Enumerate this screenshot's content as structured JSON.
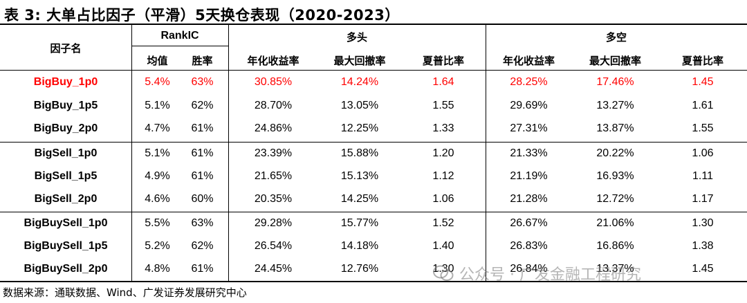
{
  "title": "表 3:  大单占比因子（平滑）5天换仓表现（2020-2023）",
  "header": {
    "factor_name": "因子名",
    "groups": {
      "rankic": "RankIC",
      "long": "多头",
      "long_short": "多空"
    },
    "columns": [
      "均值",
      "胜率",
      "年化收益率",
      "最大回撤率",
      "夏普比率",
      "年化收益率",
      "最大回撤率",
      "夏普比率"
    ]
  },
  "rows": [
    {
      "name": "BigBuy_1p0",
      "values": [
        "5.4%",
        "63%",
        "30.85%",
        "14.24%",
        "1.64",
        "28.25%",
        "17.46%",
        "1.45"
      ],
      "highlight": true
    },
    {
      "name": "BigBuy_1p5",
      "values": [
        "5.1%",
        "62%",
        "28.70%",
        "13.05%",
        "1.55",
        "29.69%",
        "13.27%",
        "1.61"
      ],
      "highlight": false
    },
    {
      "name": "BigBuy_2p0",
      "values": [
        "4.7%",
        "61%",
        "24.86%",
        "12.25%",
        "1.33",
        "27.31%",
        "13.87%",
        "1.55"
      ],
      "highlight": false
    },
    {
      "name": "BigSell_1p0",
      "values": [
        "5.1%",
        "61%",
        "23.39%",
        "15.88%",
        "1.20",
        "21.33%",
        "20.22%",
        "1.06"
      ],
      "highlight": false
    },
    {
      "name": "BigSell_1p5",
      "values": [
        "4.9%",
        "61%",
        "21.65%",
        "15.13%",
        "1.12",
        "21.19%",
        "16.93%",
        "1.11"
      ],
      "highlight": false
    },
    {
      "name": "BigSell_2p0",
      "values": [
        "4.6%",
        "60%",
        "20.35%",
        "14.25%",
        "1.06",
        "21.28%",
        "12.72%",
        "1.17"
      ],
      "highlight": false
    },
    {
      "name": "BigBuySell_1p0",
      "values": [
        "5.5%",
        "63%",
        "29.28%",
        "15.77%",
        "1.52",
        "26.67%",
        "21.06%",
        "1.30"
      ],
      "highlight": false
    },
    {
      "name": "BigBuySell_1p5",
      "values": [
        "5.2%",
        "62%",
        "26.54%",
        "14.18%",
        "1.40",
        "26.83%",
        "16.86%",
        "1.38"
      ],
      "highlight": false
    },
    {
      "name": "BigBuySell_2p0",
      "values": [
        "4.8%",
        "61%",
        "24.45%",
        "12.76%",
        "1.30",
        "26.84%",
        "13.37%",
        "1.45"
      ],
      "highlight": false
    }
  ],
  "source": "数据来源：通联数据、Wind、广发证券发展研究中心",
  "watermark": "公众号 · 广发金融工程研究",
  "colors": {
    "highlight": "#ff0000",
    "rule": "#000000",
    "watermark": "#8c8c8c"
  }
}
